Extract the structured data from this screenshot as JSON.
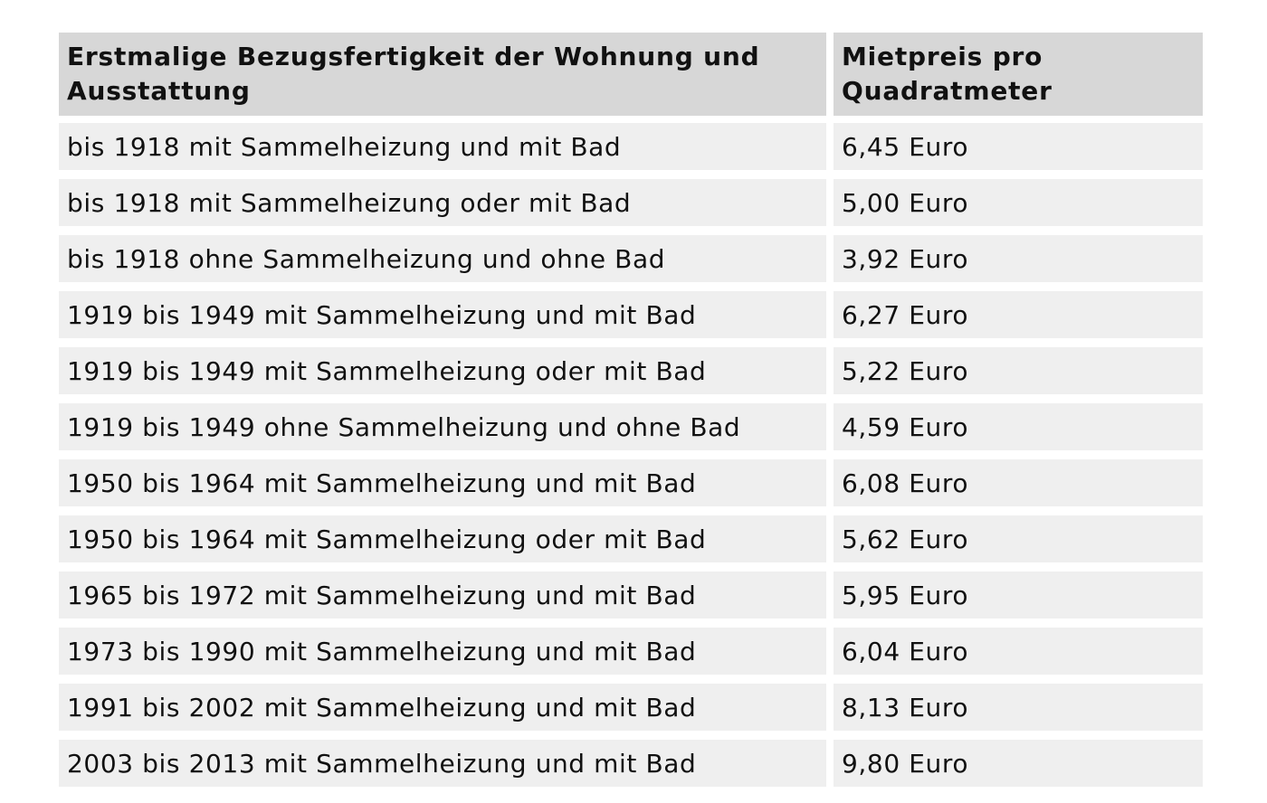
{
  "table": {
    "headers": [
      "Erstmalige Bezugsfertigkeit der Wohnung und Ausstattung",
      "Mietpreis pro Quadratmeter"
    ],
    "rows": [
      [
        "bis 1918 mit Sammelheizung und mit Bad",
        "6,45 Euro"
      ],
      [
        "bis 1918 mit Sammelheizung oder mit Bad",
        "5,00 Euro"
      ],
      [
        "bis 1918 ohne Sammelheizung und ohne Bad",
        "3,92 Euro"
      ],
      [
        "1919 bis 1949 mit Sammelheizung und mit Bad",
        "6,27 Euro"
      ],
      [
        "1919 bis 1949 mit Sammelheizung oder mit Bad",
        "5,22 Euro"
      ],
      [
        "1919 bis 1949 ohne Sammelheizung und ohne Bad",
        "4,59 Euro"
      ],
      [
        "1950 bis 1964 mit Sammelheizung und mit Bad",
        "6,08 Euro"
      ],
      [
        "1950 bis 1964 mit Sammelheizung oder mit Bad",
        "5,62 Euro"
      ],
      [
        "1965 bis 1972 mit Sammelheizung und mit Bad",
        "5,95 Euro"
      ],
      [
        "1973 bis 1990 mit Sammelheizung und mit Bad",
        "6,04 Euro"
      ],
      [
        "1991 bis 2002 mit Sammelheizung und mit Bad",
        "8,13 Euro"
      ],
      [
        "2003 bis 2013 mit Sammelheizung und mit Bad",
        "9,80 Euro"
      ]
    ]
  },
  "colors": {
    "header_background": "#d7d7d7",
    "row_background": "#efefef",
    "text": "#111111"
  }
}
